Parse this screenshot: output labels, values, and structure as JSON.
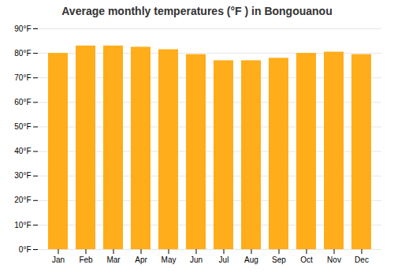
{
  "chart_data": {
    "type": "bar",
    "title": "Average monthly temperatures (°F ) in Bongouanou",
    "categories": [
      "Jan",
      "Feb",
      "Mar",
      "Apr",
      "May",
      "Jun",
      "Jul",
      "Aug",
      "Sep",
      "Oct",
      "Nov",
      "Dec"
    ],
    "values": [
      80,
      83,
      83,
      82.5,
      81.5,
      79.5,
      77,
      77,
      78,
      80,
      80.5,
      79.5
    ],
    "color": "#FFAD1A",
    "ylim": [
      0,
      90
    ],
    "yticks": [
      {
        "value": 0,
        "label": "0°F"
      },
      {
        "value": 10,
        "label": "10°F"
      },
      {
        "value": 20,
        "label": "20°F"
      },
      {
        "value": 30,
        "label": "30°F"
      },
      {
        "value": 40,
        "label": "40°F"
      },
      {
        "value": 50,
        "label": "50°F"
      },
      {
        "value": 60,
        "label": "60°F"
      },
      {
        "value": 70,
        "label": "70°F"
      },
      {
        "value": 80,
        "label": "80°F"
      },
      {
        "value": 90,
        "label": "90°F"
      }
    ],
    "grid": true
  }
}
